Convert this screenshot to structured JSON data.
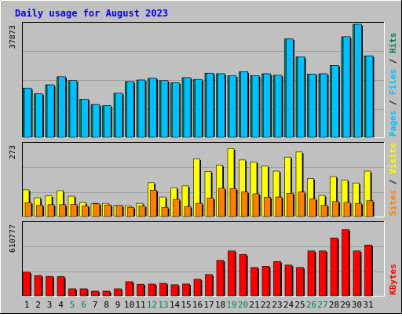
{
  "chart_data": {
    "type": "bar",
    "title": "Daily usage for August 2023",
    "categories": [
      "1",
      "2",
      "3",
      "4",
      "5",
      "6",
      "7",
      "8",
      "9",
      "10",
      "11",
      "12",
      "13",
      "14",
      "15",
      "16",
      "17",
      "18",
      "19",
      "20",
      "21",
      "22",
      "23",
      "24",
      "25",
      "26",
      "27",
      "28",
      "29",
      "30",
      "31"
    ],
    "weekend_days": [
      5,
      6,
      12,
      13,
      19,
      20,
      26,
      27
    ],
    "panels": [
      {
        "name": "requests",
        "ymax_label": "37873",
        "ymax": 37873,
        "legend": {
          "parts": [
            "Pages",
            "Files",
            "Hits"
          ],
          "separator": " / "
        },
        "series": [
          {
            "name": "Hits",
            "color": "#00805c",
            "values": [
              16500,
              14600,
              17600,
              20300,
              19000,
              12800,
              11000,
              10600,
              14800,
              18700,
              19200,
              19800,
              19000,
              18300,
              20000,
              19400,
              21500,
              21300,
              20600,
              22000,
              20700,
              21300,
              20800,
              33000,
              27000,
              21200,
              21300,
              24100,
              33700,
              37873,
              27300
            ]
          },
          {
            "name": "Files",
            "color": "#00c0ff",
            "values": [
              16500,
              14600,
              17600,
              20300,
              19000,
              12800,
              11000,
              10600,
              14800,
              18700,
              19200,
              19800,
              19000,
              18300,
              20000,
              19400,
              21500,
              21300,
              20600,
              22000,
              20700,
              21300,
              20800,
              33000,
              27000,
              21200,
              21300,
              24100,
              33700,
              37873,
              27300
            ]
          },
          {
            "name": "Pages",
            "color": "#00c0ff",
            "values": []
          }
        ]
      },
      {
        "name": "visits",
        "ymax_label": "273",
        "ymax": 273,
        "legend": {
          "parts": [
            "Sites",
            "Visits"
          ],
          "separator": " / "
        },
        "series": [
          {
            "name": "Visits",
            "color": "#ffff00",
            "values": [
              101,
              71,
              78,
              98,
              77,
              53,
              50,
              50,
              42,
              40,
              50,
              128,
              74,
              109,
              116,
              218,
              171,
              195,
              257,
              214,
              206,
              191,
              172,
              225,
              244,
              144,
              80,
              151,
              138,
              127,
              172
            ]
          },
          {
            "name": "Sites",
            "color": "#ff8000",
            "values": [
              53,
              43,
              45,
              45,
              46,
              40,
              48,
              44,
              42,
              35,
              40,
              100,
              35,
              65,
              38,
              50,
              70,
              107,
              106,
              93,
              86,
              73,
              74,
              88,
              93,
              67,
              42,
              57,
              54,
              50,
              60
            ]
          }
        ]
      },
      {
        "name": "kbytes",
        "ymax_label": "610777",
        "ymax": 610777,
        "legend": {
          "parts": [
            "KBytes"
          ],
          "separator": ""
        },
        "series": [
          {
            "name": "KBytes",
            "color": "#ff0000",
            "values": [
              200000,
              172000,
              165000,
              163000,
              60000,
              60000,
              40000,
              40000,
              60000,
              120000,
              98000,
              100000,
              106000,
              94000,
              100000,
              140000,
              180000,
              300000,
              380000,
              350000,
              240000,
              250000,
              290000,
              260000,
              240000,
              380000,
              380000,
              490000,
              560000,
              380000,
              430000
            ]
          }
        ]
      }
    ]
  },
  "colors": {
    "background": "#c0c0c0",
    "plot_bg": "#c0c0c0",
    "grid": "#a0a0a0",
    "title": "#0000ff",
    "weekday_label": "#000000",
    "weekend_label": "#00805c",
    "bar_shadow": "#000000"
  }
}
